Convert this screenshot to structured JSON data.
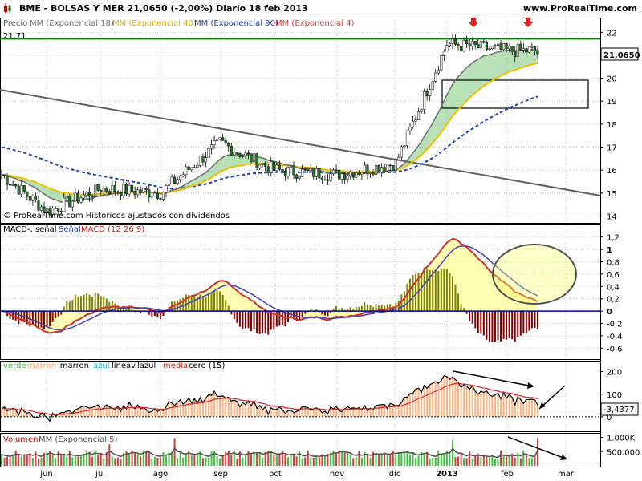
{
  "header": {
    "title": "BME - BOLSAS Y MER    21,0650 (-2,00%)    Diario  18 feb 2013",
    "site": "www.ProRealTime.com"
  },
  "colors": {
    "grid": "#c8c8c8",
    "candle": "#1e7a1e",
    "mm18": "#707070",
    "mm40": "#f0c000",
    "mm90": "#2040c0",
    "mm4": "#e04040",
    "cloud_up": "#7ec87e",
    "cloud_dn": "#c88080",
    "macd_fill": "#ffffa0",
    "hist_up": "#808000",
    "hist_dn": "#800000",
    "blue_line": "#2020a0",
    "green_area": "#60d060",
    "orange_bar": "#ffa060",
    "cyan_bar": "#40c0e0",
    "volume_bar": "#d04040"
  },
  "price_panel": {
    "legend": {
      "p1": "Precio",
      "p2": "MM (Exponencial 18)",
      "p3": "MM (Exponencial 40)",
      "p4": "MM (Exponencial 90)",
      "p5": "MM (Exponencial 4)"
    },
    "level_label": "21,71",
    "last_price": "21,0650",
    "watermark": "© ProRealTime.com  Históricos ajustados con dividendos",
    "y_ticks": [
      "22",
      "21",
      "20",
      "19",
      "18",
      "17",
      "16",
      "15",
      "14"
    ]
  },
  "macd_panel": {
    "legend": {
      "p1": "MACD-, señal",
      "p2": "Señal",
      "p3": "MACD (12 26 9)"
    },
    "y_ticks": [
      "1,2",
      "1",
      "0,8",
      "0,6",
      "0,4",
      "0,2",
      "0",
      "-0,2",
      "-0,4",
      "-0,6"
    ]
  },
  "osc_panel": {
    "legend": {
      "p1": "verde",
      "p2": "marron",
      "p3": "lmarron",
      "p4": "azul",
      "p5": "lineav",
      "p6": "lazul",
      "p7": "media",
      "p8": "cero (15)"
    },
    "y_ticks": [
      "200",
      "100",
      "0"
    ],
    "last_value": "-3,4377"
  },
  "volume_panel": {
    "legend": {
      "p1": "Volumen",
      "p2": "MM (Exponencial 5)"
    },
    "y_ticks": [
      "1.000K",
      "500.000"
    ]
  },
  "x_axis": {
    "labels": [
      "jun",
      "jul",
      "ago",
      "sep",
      "oct",
      "nov",
      "dic",
      "2013",
      "feb",
      "mar"
    ]
  },
  "chart_data": [
    {
      "type": "line",
      "title": "BME - BOLSAS Y MER — Precio",
      "x": [
        "jun",
        "jul",
        "ago",
        "sep",
        "oct",
        "nov",
        "dic",
        "2013",
        "feb",
        "mar"
      ],
      "series": [
        {
          "name": "Precio",
          "values": [
            14.2,
            15.2,
            15.0,
            17.2,
            16.0,
            15.8,
            16.3,
            21.5,
            21.2,
            null
          ]
        },
        {
          "name": "MM (Exponencial 18)",
          "values": [
            14.6,
            14.7,
            15.9,
            16.9,
            16.2,
            15.9,
            16.1,
            19.0,
            20.9,
            null
          ]
        },
        {
          "name": "MM (Exponencial 40)",
          "values": [
            15.1,
            14.8,
            15.7,
            16.4,
            16.3,
            15.9,
            16.0,
            18.3,
            20.5,
            null
          ]
        },
        {
          "name": "MM (Exponencial 90)",
          "values": [
            17.0,
            16.0,
            15.6,
            15.9,
            16.1,
            15.9,
            15.9,
            17.4,
            18.7,
            null
          ]
        }
      ],
      "ylim": [
        13.7,
        22.5
      ]
    },
    {
      "type": "line",
      "title": "MACD (12 26 9)",
      "x": [
        "jun",
        "jul",
        "ago",
        "sep",
        "oct",
        "nov",
        "dic",
        "2013",
        "feb",
        "mar"
      ],
      "series": [
        {
          "name": "MACD",
          "values": [
            -0.3,
            -0.4,
            0.1,
            0.55,
            0.1,
            -0.1,
            0.2,
            1.1,
            0.4,
            null
          ]
        },
        {
          "name": "Señal",
          "values": [
            -0.2,
            -0.3,
            0.0,
            0.5,
            0.15,
            -0.1,
            0.1,
            1.0,
            0.5,
            null
          ]
        }
      ],
      "ylim": [
        -0.7,
        1.3
      ]
    },
    {
      "type": "line",
      "title": "verde marron lmarron azul lineav lazul media cero (15)",
      "x": [
        "jun",
        "jul",
        "ago",
        "sep",
        "oct",
        "nov",
        "dic",
        "2013",
        "feb",
        "mar"
      ],
      "series": [
        {
          "name": "media",
          "values": [
            40,
            20,
            50,
            60,
            40,
            30,
            60,
            110,
            100,
            null
          ]
        }
      ],
      "ylim": [
        -50,
        220
      ]
    },
    {
      "type": "bar",
      "title": "Volumen",
      "categories": [
        "jun",
        "jul",
        "ago",
        "sep",
        "oct",
        "nov",
        "dic",
        "2013",
        "feb",
        "mar"
      ],
      "series": [
        {
          "name": "Volumen",
          "values": [
            300000,
            450000,
            350000,
            400000,
            300000,
            350000,
            400000,
            600000,
            700000,
            null
          ]
        },
        {
          "name": "MM (Exponencial 5)",
          "values": [
            330000,
            380000,
            330000,
            360000,
            320000,
            330000,
            380000,
            500000,
            550000,
            null
          ]
        }
      ],
      "ylim": [
        0,
        1100000
      ]
    }
  ]
}
